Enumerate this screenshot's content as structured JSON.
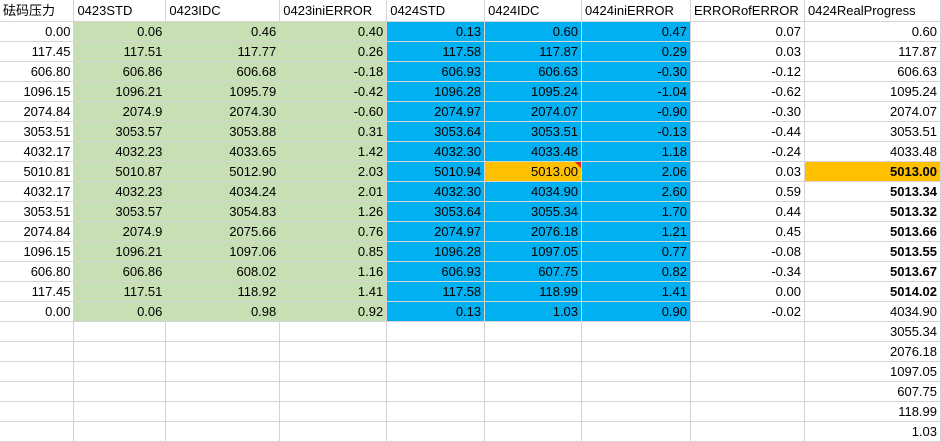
{
  "columns": [
    "砝码压力",
    "0423STD",
    "0423IDC",
    "0423iniERROR",
    "0424STD",
    "0424IDC",
    "0424iniERROR",
    "ERRORofERROR",
    "0424RealProgress"
  ],
  "rows": [
    [
      "0.00",
      "0.06",
      "0.46",
      "0.40",
      "0.13",
      "0.60",
      "0.47",
      "0.07",
      "0.60"
    ],
    [
      "117.45",
      "117.51",
      "117.77",
      "0.26",
      "117.58",
      "117.87",
      "0.29",
      "0.03",
      "117.87"
    ],
    [
      "606.80",
      "606.86",
      "606.68",
      "-0.18",
      "606.93",
      "606.63",
      "-0.30",
      "-0.12",
      "606.63"
    ],
    [
      "1096.15",
      "1096.21",
      "1095.79",
      "-0.42",
      "1096.28",
      "1095.24",
      "-1.04",
      "-0.62",
      "1095.24"
    ],
    [
      "2074.84",
      "2074.9",
      "2074.30",
      "-0.60",
      "2074.97",
      "2074.07",
      "-0.90",
      "-0.30",
      "2074.07"
    ],
    [
      "3053.51",
      "3053.57",
      "3053.88",
      "0.31",
      "3053.64",
      "3053.51",
      "-0.13",
      "-0.44",
      "3053.51"
    ],
    [
      "4032.17",
      "4032.23",
      "4033.65",
      "1.42",
      "4032.30",
      "4033.48",
      "1.18",
      "-0.24",
      "4033.48"
    ],
    [
      "5010.81",
      "5010.87",
      "5012.90",
      "2.03",
      "5010.94",
      "5013.00",
      "2.06",
      "0.03",
      "5013.00"
    ],
    [
      "4032.17",
      "4032.23",
      "4034.24",
      "2.01",
      "4032.30",
      "4034.90",
      "2.60",
      "0.59",
      "5013.34"
    ],
    [
      "3053.51",
      "3053.57",
      "3054.83",
      "1.26",
      "3053.64",
      "3055.34",
      "1.70",
      "0.44",
      "5013.32"
    ],
    [
      "2074.84",
      "2074.9",
      "2075.66",
      "0.76",
      "2074.97",
      "2076.18",
      "1.21",
      "0.45",
      "5013.66"
    ],
    [
      "1096.15",
      "1096.21",
      "1097.06",
      "0.85",
      "1096.28",
      "1097.05",
      "0.77",
      "-0.08",
      "5013.55"
    ],
    [
      "606.80",
      "606.86",
      "608.02",
      "1.16",
      "606.93",
      "607.75",
      "0.82",
      "-0.34",
      "5013.67"
    ],
    [
      "117.45",
      "117.51",
      "118.92",
      "1.41",
      "117.58",
      "118.99",
      "1.41",
      "0.00",
      "5014.02"
    ],
    [
      "0.00",
      "0.06",
      "0.98",
      "0.92",
      "0.13",
      "1.03",
      "0.90",
      "-0.02",
      "4034.90"
    ],
    [
      "",
      "",
      "",
      "",
      "",
      "",
      "",
      "",
      "3055.34"
    ],
    [
      "",
      "",
      "",
      "",
      "",
      "",
      "",
      "",
      "2076.18"
    ],
    [
      "",
      "",
      "",
      "",
      "",
      "",
      "",
      "",
      "1097.05"
    ],
    [
      "",
      "",
      "",
      "",
      "",
      "",
      "",
      "",
      "607.75"
    ],
    [
      "",
      "",
      "",
      "",
      "",
      "",
      "",
      "",
      "118.99"
    ],
    [
      "",
      "",
      "",
      "",
      "",
      "",
      "",
      "",
      "1.03"
    ]
  ],
  "colors": {
    "green_fill": "#c6e0b4",
    "blue_fill": "#00b0f0",
    "orange_fill": "#ffc000"
  }
}
